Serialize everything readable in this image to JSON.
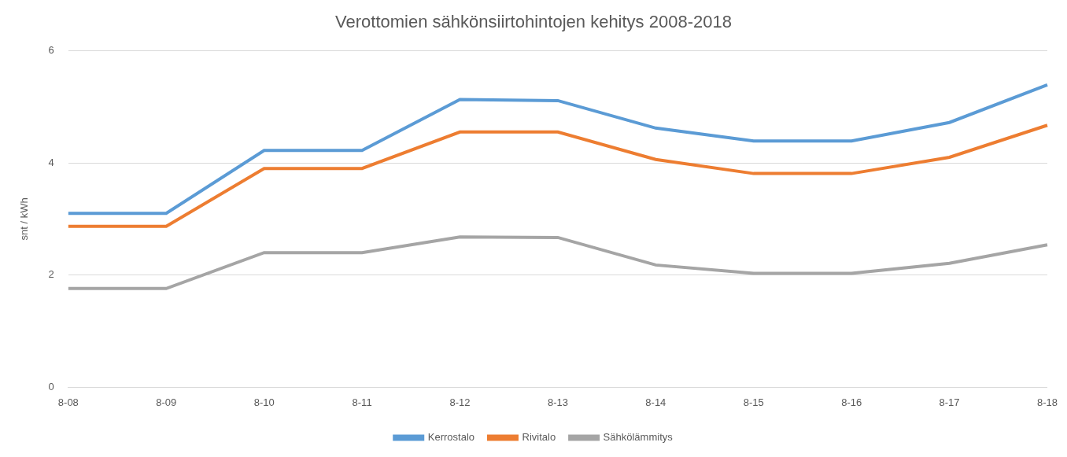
{
  "chart_data": {
    "type": "line",
    "title": "Verottomien sähkönsiirtohintojen kehitys 2008-2018",
    "y_label": "snt / kWh",
    "categories": [
      "8-08",
      "8-09",
      "8-10",
      "8-11",
      "8-12",
      "8-13",
      "8-14",
      "8-15",
      "8-16",
      "8-17",
      "8-18"
    ],
    "series": [
      {
        "name": "Kerrostalo",
        "color": "#5b9bd5",
        "values": [
          3.1,
          3.1,
          4.22,
          4.22,
          5.13,
          5.11,
          4.62,
          4.39,
          4.39,
          4.72,
          5.39
        ]
      },
      {
        "name": "Rivitalo",
        "color": "#ed7d31",
        "values": [
          2.87,
          2.87,
          3.9,
          3.9,
          4.55,
          4.55,
          4.06,
          3.81,
          3.81,
          4.1,
          4.67
        ]
      },
      {
        "name": "Sähkölämmitys",
        "color": "#a5a5a5",
        "values": [
          1.76,
          1.76,
          2.4,
          2.4,
          2.68,
          2.67,
          2.18,
          2.03,
          2.03,
          2.21,
          2.54
        ]
      }
    ],
    "ylim": [
      0,
      6
    ],
    "yticks": [
      0,
      2,
      4,
      6
    ],
    "grid": true,
    "legend": "bottom",
    "marker": "none",
    "line_style": "solid"
  }
}
